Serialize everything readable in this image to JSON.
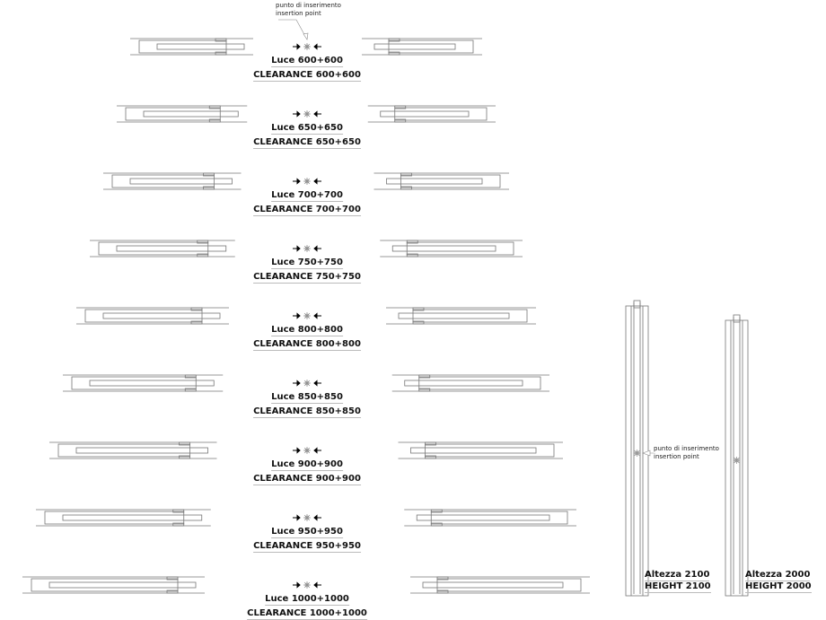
{
  "annotation": {
    "line1": "punto di inserimento",
    "line2": "insertion point"
  },
  "rows": [
    {
      "luce": "Luce 600+600",
      "clearance": "CLEARANCE 600+600"
    },
    {
      "luce": "Luce 650+650",
      "clearance": "CLEARANCE 650+650"
    },
    {
      "luce": "Luce 700+700",
      "clearance": "CLEARANCE 700+700"
    },
    {
      "luce": "Luce 750+750",
      "clearance": "CLEARANCE 750+750"
    },
    {
      "luce": "Luce 800+800",
      "clearance": "CLEARANCE 800+800"
    },
    {
      "luce": "Luce 850+850",
      "clearance": "CLEARANCE 850+850"
    },
    {
      "luce": "Luce 900+900",
      "clearance": "CLEARANCE 900+900"
    },
    {
      "luce": "Luce 950+950",
      "clearance": "CLEARANCE 950+950"
    },
    {
      "luce": "Luce 1000+1000",
      "clearance": "CLEARANCE 1000+1000"
    }
  ],
  "elevations": [
    {
      "altezza": "Altezza 2100",
      "height": "HEIGHT 2100"
    },
    {
      "altezza": "Altezza 2000",
      "height": "HEIGHT 2000"
    }
  ]
}
